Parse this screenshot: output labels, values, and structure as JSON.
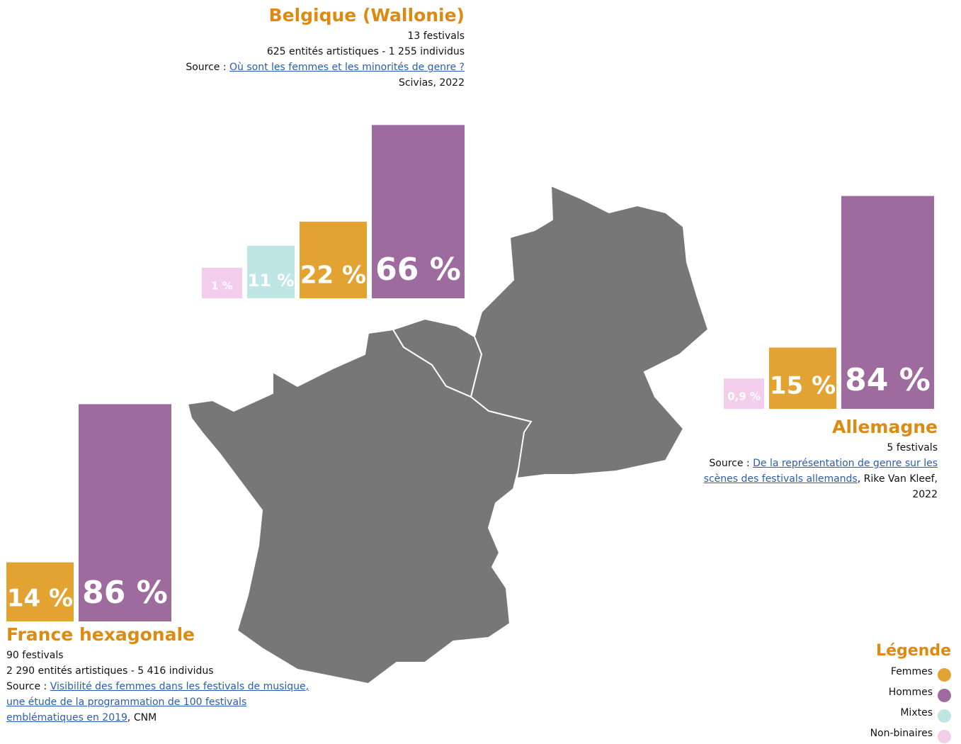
{
  "legend": {
    "title": "Légende",
    "categories": [
      "Femmes",
      "Hommes",
      "Mixtes",
      "Non-binaires"
    ],
    "colors": [
      "#e3a332",
      "#9e6b9e",
      "#bfe5e5",
      "#f3cdec"
    ]
  },
  "chart_data": [
    {
      "type": "bar",
      "title": "Belgique (Wallonie)",
      "lines": [
        "13 festivals",
        "625 entités artistiques - 1 255 individus"
      ],
      "source": {
        "label": "Source :",
        "link": "Où sont les femmes et les minorités de genre ?",
        "credit": "Scivias, 2022"
      },
      "values": [
        22,
        66,
        11,
        1
      ],
      "value_labels": [
        "22 %",
        "66 %",
        "11 %",
        "1 %"
      ]
    },
    {
      "type": "bar",
      "title": "Allemagne",
      "lines": [
        "5 festivals"
      ],
      "source": {
        "label": "Source :",
        "link": "De la représentation de genre sur les scènes des festivals allemands",
        "credit": ", Rike Van Kleef, 2022"
      },
      "values": [
        15,
        84,
        null,
        0.9
      ],
      "value_labels": [
        "15 %",
        "84 %",
        null,
        "0,9 %"
      ]
    },
    {
      "type": "bar",
      "title": "France hexagonale",
      "lines": [
        "90 festivals",
        "2 290 entités artistiques - 5 416 individus"
      ],
      "source": {
        "label": "Source :",
        "link": "Visibilité des femmes dans les festivals de musique, une étude de la programmation de 100 festivals emblématiques en 2019",
        "credit": ", CNM"
      },
      "values": [
        14,
        86,
        null,
        null
      ],
      "value_labels": [
        "14 %",
        "86 %",
        null,
        null
      ]
    }
  ]
}
